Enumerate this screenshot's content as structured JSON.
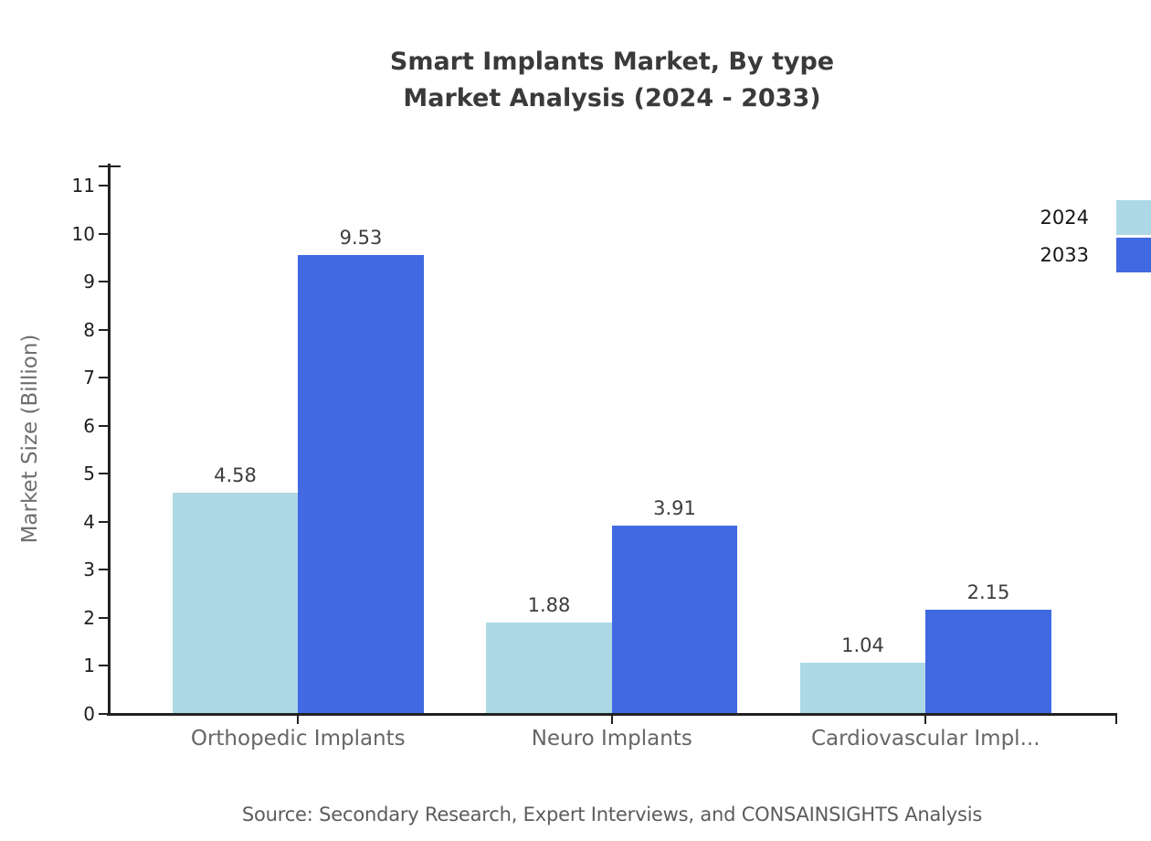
{
  "title": {
    "line1": "Smart Implants Market, By type",
    "line2": "Market Analysis (2024 - 2033)"
  },
  "source": {
    "text": "Source: Secondary Research, Expert Interviews, and CONSAINSIGHTS Analysis"
  },
  "chart_data": {
    "type": "bar",
    "title": "Smart Implants Market, By type Market Analysis (2024 - 2033)",
    "categories": [
      "Orthopedic Implants",
      "Neuro Implants",
      "Cardiovascular Impl..."
    ],
    "series": [
      {
        "name": "2024",
        "color": "#ADD8E6",
        "values": [
          4.58,
          1.88,
          1.04
        ]
      },
      {
        "name": "2033",
        "color": "#4169E1",
        "values": [
          9.53,
          3.91,
          2.15
        ]
      }
    ],
    "xlabel": "",
    "ylabel": "Market Size (Billion)",
    "ylim": [
      0,
      11
    ],
    "yticks": [
      0,
      1,
      2,
      3,
      4,
      5,
      6,
      7,
      8,
      9,
      10,
      11
    ],
    "grid": false,
    "legend_position": "top-right",
    "value_labels_shown": true,
    "colors": {
      "series_2024": "#ADD8E6",
      "series_2033": "#4169E1",
      "axis": "#222222",
      "tick_label": "#1f1f1f",
      "category_label": "#666666",
      "value_label": "#3d3d3d",
      "title": "#3a3a3a",
      "ylabel": "#6e6e6e",
      "source": "#5c5c5c",
      "background": "#ffffff"
    }
  }
}
